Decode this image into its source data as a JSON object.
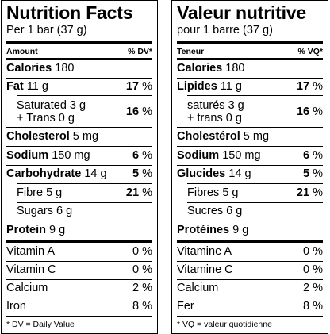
{
  "english": {
    "title": "Nutrition Facts",
    "serving": "Per 1 bar (37 g)",
    "amount_header": "Amount",
    "dv_header": "% DV*",
    "calories_label": "Calories",
    "calories_value": "180",
    "fat_label": "Fat",
    "fat_amount": "11 g",
    "fat_dv": "17",
    "sat_label": "Saturated",
    "sat_amount": "3 g",
    "trans_label": "+ Trans",
    "trans_amount": "0 g",
    "sat_trans_dv": "16",
    "chol_label": "Cholesterol",
    "chol_amount": "5 mg",
    "sodium_label": "Sodium",
    "sodium_amount": "150 mg",
    "sodium_dv": "6",
    "carb_label": "Carbohydrate",
    "carb_amount": "14 g",
    "carb_dv": "5",
    "fibre_label": "Fibre",
    "fibre_amount": "5 g",
    "fibre_dv": "21",
    "sugars_label": "Sugars",
    "sugars_amount": "6 g",
    "protein_label": "Protein",
    "protein_amount": "9 g",
    "vita_label": "Vitamin A",
    "vita_dv": "0",
    "vitc_label": "Vitamin C",
    "vitc_dv": "0",
    "calcium_label": "Calcium",
    "calcium_dv": "2",
    "iron_label": "Iron",
    "iron_dv": "8",
    "footnote": "* DV = Daily Value"
  },
  "french": {
    "title": "Valeur nutritive",
    "serving": "pour 1 barre (37 g)",
    "amount_header": "Teneur",
    "dv_header": "% VQ*",
    "calories_label": "Calories",
    "calories_value": "180",
    "fat_label": "Lipides",
    "fat_amount": "11 g",
    "fat_dv": "17",
    "sat_label": "saturés",
    "sat_amount": "3 g",
    "trans_label": "+ trans",
    "trans_amount": "0 g",
    "sat_trans_dv": "16",
    "chol_label": "Cholestérol",
    "chol_amount": "5 mg",
    "sodium_label": "Sodium",
    "sodium_amount": "150 mg",
    "sodium_dv": "6",
    "carb_label": "Glucides",
    "carb_amount": "14 g",
    "carb_dv": "5",
    "fibre_label": "Fibres",
    "fibre_amount": "5 g",
    "fibre_dv": "21",
    "sugars_label": "Sucres",
    "sugars_amount": "6 g",
    "protein_label": "Protéines",
    "protein_amount": "9 g",
    "vita_label": "Vitamine A",
    "vita_dv": "0",
    "vitc_label": "Vitamine C",
    "vitc_dv": "0",
    "calcium_label": "Calcium",
    "calcium_dv": "2",
    "iron_label": "Fer",
    "iron_dv": "8",
    "footnote": "* VQ = valeur quotidienne"
  },
  "percent_sign": "%"
}
